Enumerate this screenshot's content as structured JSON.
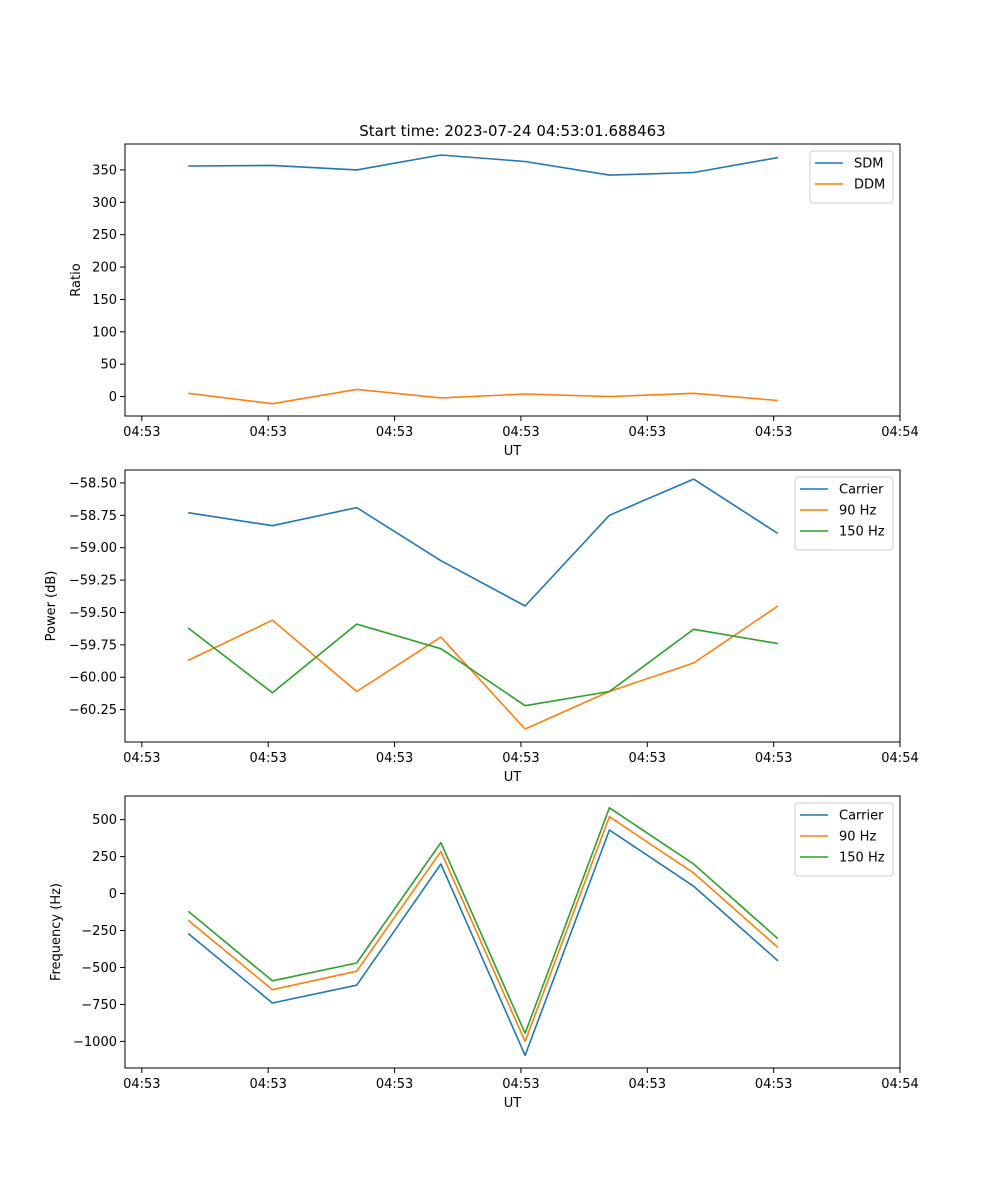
{
  "figure": {
    "suptitle": "Start time: 2023-07-24 04:53:01.688463"
  },
  "colors": {
    "blue": "#1f77b4",
    "orange": "#ff7f0e",
    "green": "#2ca02c"
  },
  "chart_data": [
    {
      "type": "line",
      "title": "Start time: 2023-07-24 04:53:01.688463",
      "xlabel": "UT",
      "ylabel": "Ratio",
      "legend": "top-right",
      "grid": false,
      "xlim": [
        0,
        9.2
      ],
      "x": [
        0.75,
        1.75,
        2.75,
        3.75,
        4.75,
        5.75,
        6.75,
        7.75
      ],
      "xticks": [
        0.2,
        1.7,
        3.2,
        4.7,
        6.2,
        7.7,
        9.2
      ],
      "xticklabels": [
        "04:53",
        "04:53",
        "04:53",
        "04:53",
        "04:53",
        "04:53",
        "04:54"
      ],
      "ylim": [
        -30,
        390
      ],
      "yticks": [
        0,
        50,
        100,
        150,
        200,
        250,
        300,
        350
      ],
      "yticklabels": [
        "0",
        "50",
        "100",
        "150",
        "200",
        "250",
        "300",
        "350"
      ],
      "series": [
        {
          "name": "SDM",
          "color": "#1f77b4",
          "values": [
            356,
            357,
            350,
            373,
            363,
            342,
            346,
            369
          ]
        },
        {
          "name": "DDM",
          "color": "#ff7f0e",
          "values": [
            5,
            -11,
            11,
            -2,
            4,
            0,
            5,
            -6
          ]
        }
      ]
    },
    {
      "type": "line",
      "title": "",
      "xlabel": "UT",
      "ylabel": "Power (dB)",
      "legend": "top-right",
      "grid": false,
      "xlim": [
        0,
        9.2
      ],
      "x": [
        0.75,
        1.75,
        2.75,
        3.75,
        4.75,
        5.75,
        6.75,
        7.75
      ],
      "xticks": [
        0.2,
        1.7,
        3.2,
        4.7,
        6.2,
        7.7,
        9.2
      ],
      "xticklabels": [
        "04:53",
        "04:53",
        "04:53",
        "04:53",
        "04:53",
        "04:53",
        "04:54"
      ],
      "ylim": [
        -60.5,
        -58.4
      ],
      "yticks": [
        -60.25,
        -60.0,
        -59.75,
        -59.5,
        -59.25,
        -59.0,
        -58.75,
        -58.5
      ],
      "yticklabels": [
        "−60.25",
        "−60.00",
        "−59.75",
        "−59.50",
        "−59.25",
        "−59.00",
        "−58.75",
        "−58.50"
      ],
      "series": [
        {
          "name": "Carrier",
          "color": "#1f77b4",
          "values": [
            -58.73,
            -58.83,
            -58.69,
            -59.1,
            -59.45,
            -58.75,
            -58.47,
            -58.89
          ]
        },
        {
          "name": "90 Hz",
          "color": "#ff7f0e",
          "values": [
            -59.87,
            -59.56,
            -60.11,
            -59.69,
            -60.4,
            -60.11,
            -59.89,
            -59.45
          ]
        },
        {
          "name": "150 Hz",
          "color": "#2ca02c",
          "values": [
            -59.62,
            -60.12,
            -59.59,
            -59.78,
            -60.22,
            -60.11,
            -59.63,
            -59.74
          ]
        }
      ]
    },
    {
      "type": "line",
      "title": "",
      "xlabel": "UT",
      "ylabel": "Frequency (Hz)",
      "legend": "top-right",
      "grid": false,
      "xlim": [
        0,
        9.2
      ],
      "x": [
        0.75,
        1.75,
        2.75,
        3.75,
        4.75,
        5.75,
        6.75,
        7.75
      ],
      "xticks": [
        0.2,
        1.7,
        3.2,
        4.7,
        6.2,
        7.7,
        9.2
      ],
      "xticklabels": [
        "04:53",
        "04:53",
        "04:53",
        "04:53",
        "04:53",
        "04:53",
        "04:54"
      ],
      "ylim": [
        -1180,
        660
      ],
      "yticks": [
        -1000,
        -750,
        -500,
        -250,
        0,
        250,
        500
      ],
      "yticklabels": [
        "−1000",
        "−750",
        "−500",
        "−250",
        "0",
        "250",
        "500"
      ],
      "series": [
        {
          "name": "Carrier",
          "color": "#1f77b4",
          "values": [
            -270,
            -740,
            -620,
            200,
            -1095,
            430,
            50,
            -455
          ]
        },
        {
          "name": "90 Hz",
          "color": "#ff7f0e",
          "values": [
            -180,
            -650,
            -525,
            285,
            -1000,
            520,
            140,
            -365
          ]
        },
        {
          "name": "150 Hz",
          "color": "#2ca02c",
          "values": [
            -120,
            -590,
            -470,
            345,
            -945,
            580,
            200,
            -305
          ]
        }
      ]
    }
  ]
}
